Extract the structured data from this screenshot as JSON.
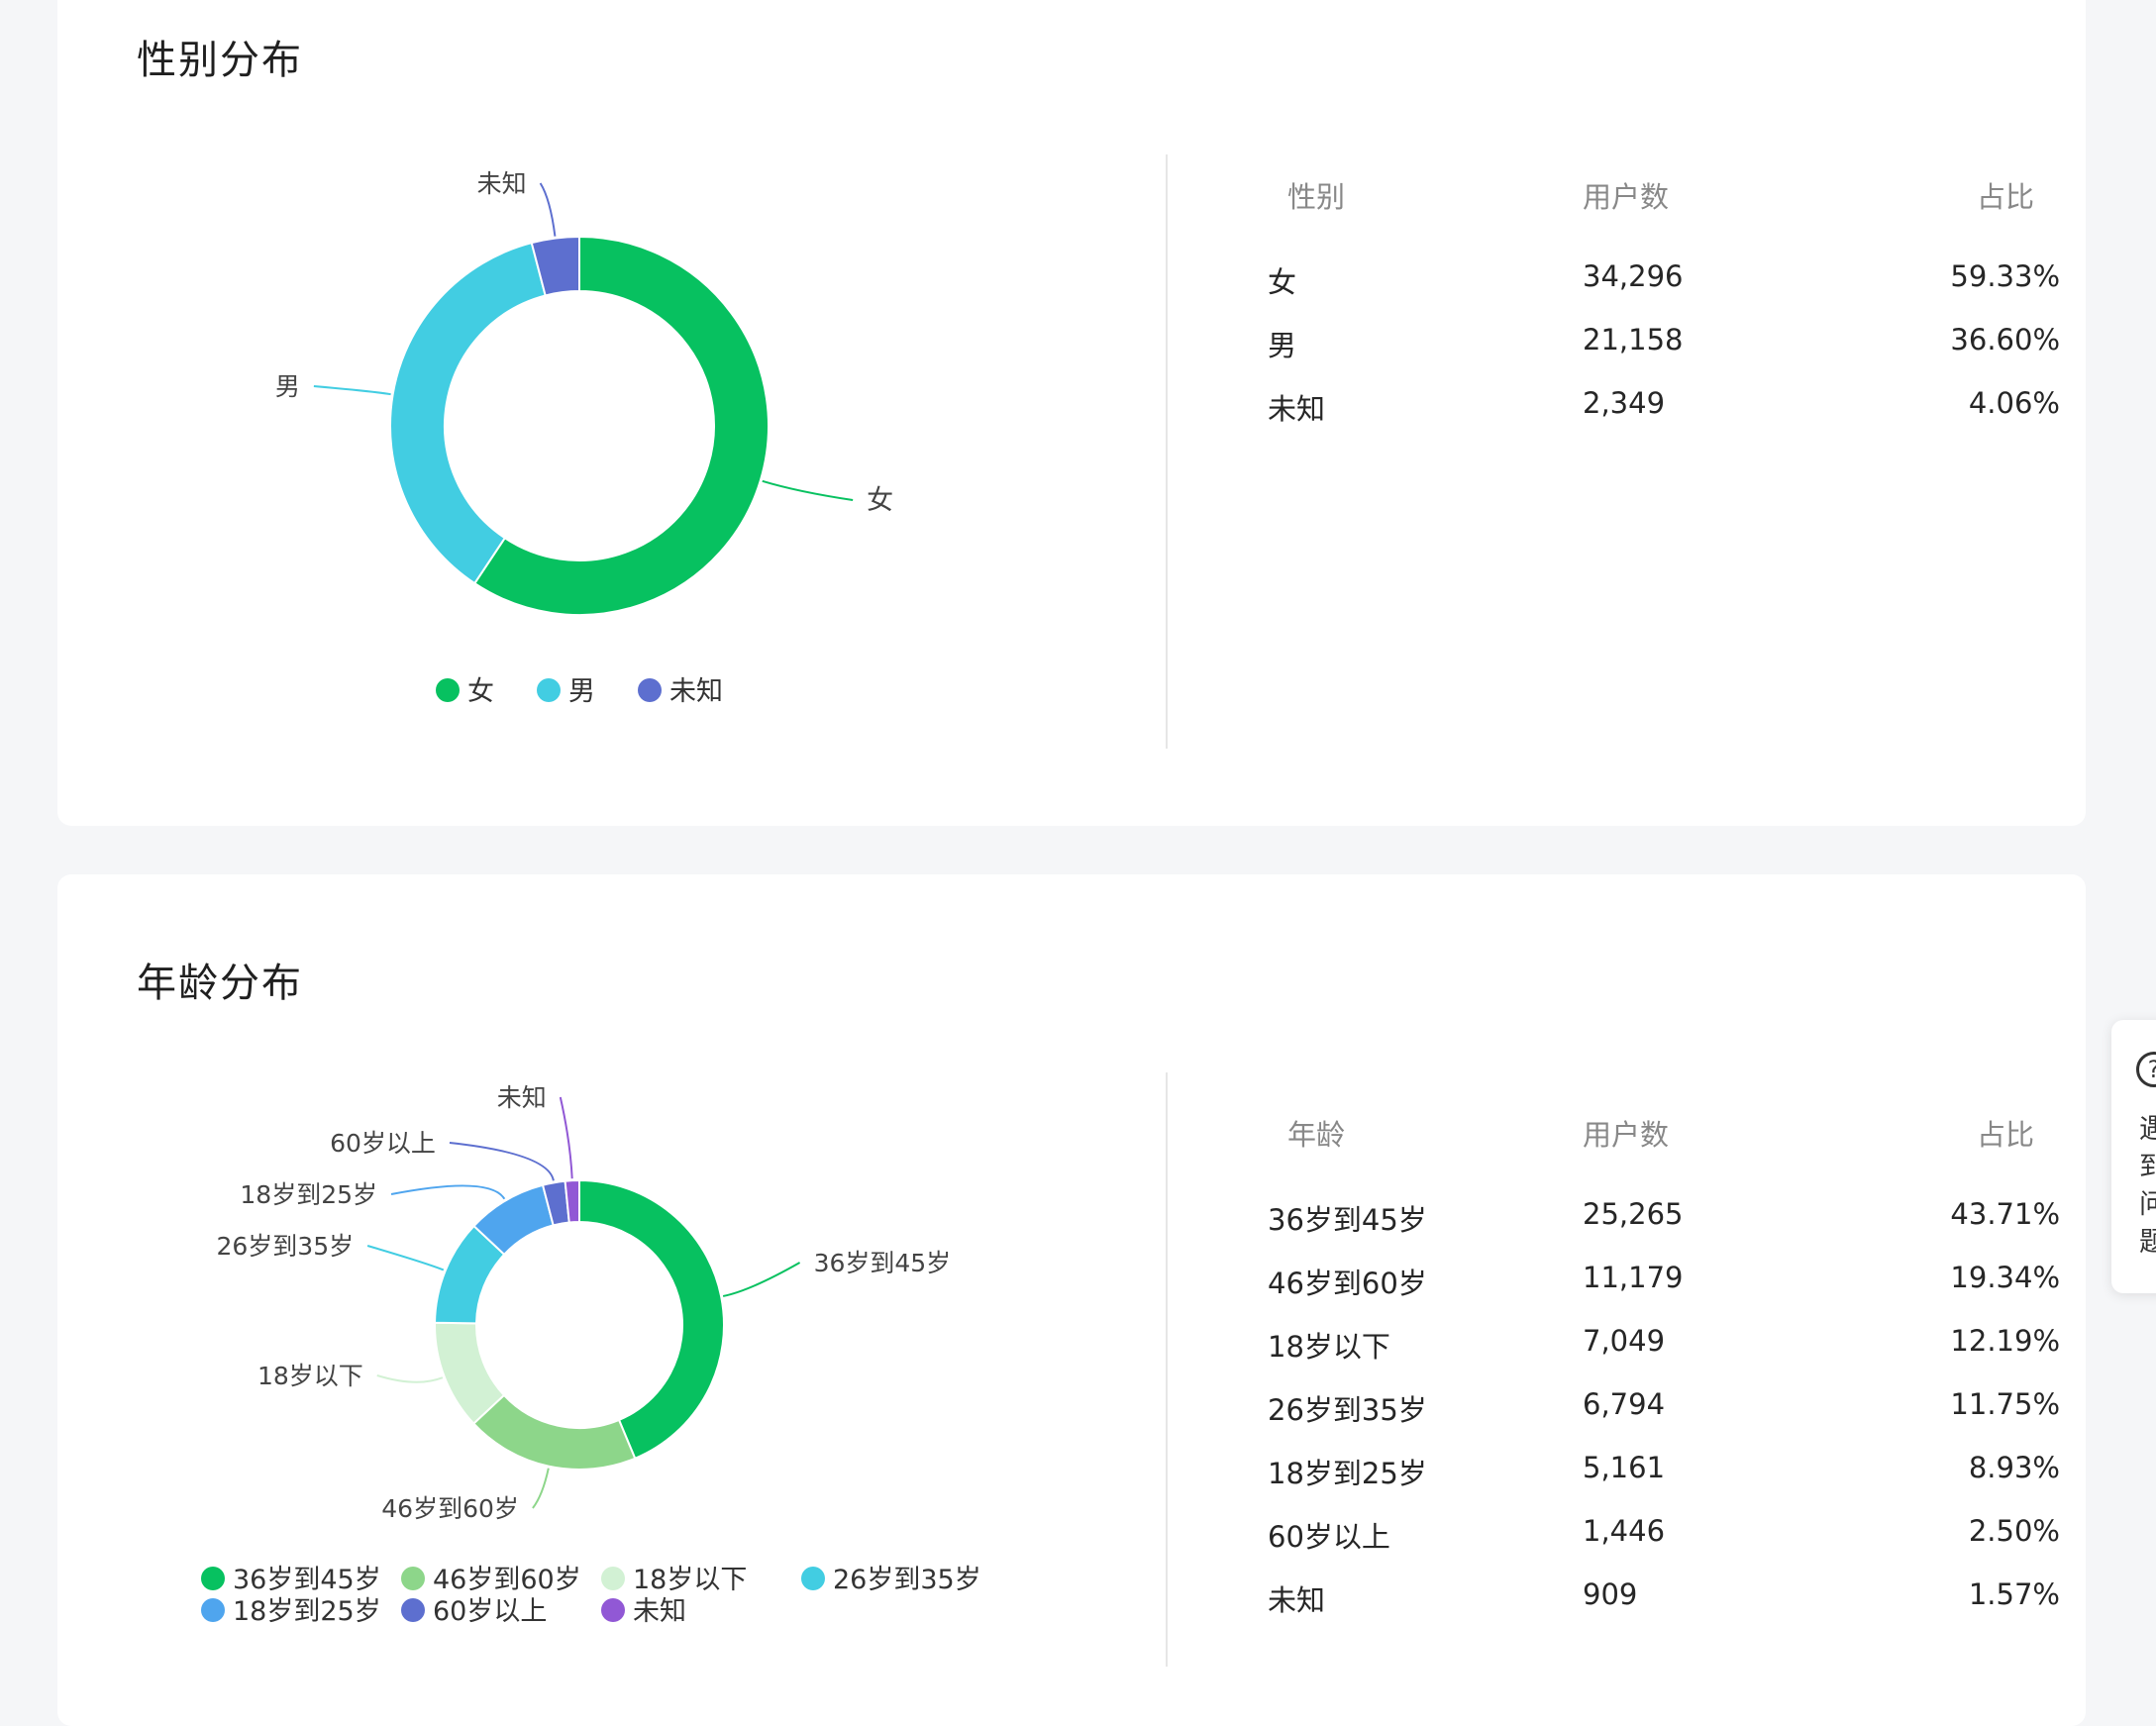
{
  "gender_section": {
    "title": "性别分布",
    "table": {
      "headers": [
        "性别",
        "用户数",
        "占比"
      ],
      "rows": [
        {
          "name": "女",
          "count": "34,296",
          "pct": "59.33%"
        },
        {
          "name": "男",
          "count": "21,158",
          "pct": "36.60%"
        },
        {
          "name": "未知",
          "count": "2,349",
          "pct": "4.06%"
        }
      ]
    }
  },
  "age_section": {
    "title": "年龄分布",
    "table": {
      "headers": [
        "年龄",
        "用户数",
        "占比"
      ],
      "rows": [
        {
          "name": "36岁到45岁",
          "count": "25,265",
          "pct": "43.71%"
        },
        {
          "name": "46岁到60岁",
          "count": "11,179",
          "pct": "19.34%"
        },
        {
          "name": "18岁以下",
          "count": "7,049",
          "pct": "12.19%"
        },
        {
          "name": "26岁到35岁",
          "count": "6,794",
          "pct": "11.75%"
        },
        {
          "name": "18岁到25岁",
          "count": "5,161",
          "pct": "8.93%"
        },
        {
          "name": "60岁以上",
          "count": "1,446",
          "pct": "2.50%"
        },
        {
          "name": "未知",
          "count": "909",
          "pct": "1.57%"
        }
      ]
    }
  },
  "help_widget": {
    "icon": "question-circle-icon",
    "icon_glyph": "?",
    "text": "遇到问题"
  },
  "chart_data": [
    {
      "type": "pie",
      "donut": true,
      "categories": [
        "女",
        "男",
        "未知"
      ],
      "values": [
        34296,
        21158,
        2349
      ],
      "colors": [
        "#07c160",
        "#42cde2",
        "#5d6fcf"
      ],
      "legend_position": "bottom"
    },
    {
      "type": "pie",
      "donut": true,
      "categories": [
        "36岁到45岁",
        "46岁到60岁",
        "18岁以下",
        "26岁到35岁",
        "18岁到25岁",
        "60岁以上",
        "未知"
      ],
      "values": [
        25265,
        11179,
        7049,
        6794,
        5161,
        1446,
        909
      ],
      "colors": [
        "#07c160",
        "#8dd68a",
        "#d2f1d4",
        "#42cde2",
        "#4fa5ee",
        "#5d6fcf",
        "#9158d5"
      ],
      "legend_position": "bottom"
    }
  ]
}
